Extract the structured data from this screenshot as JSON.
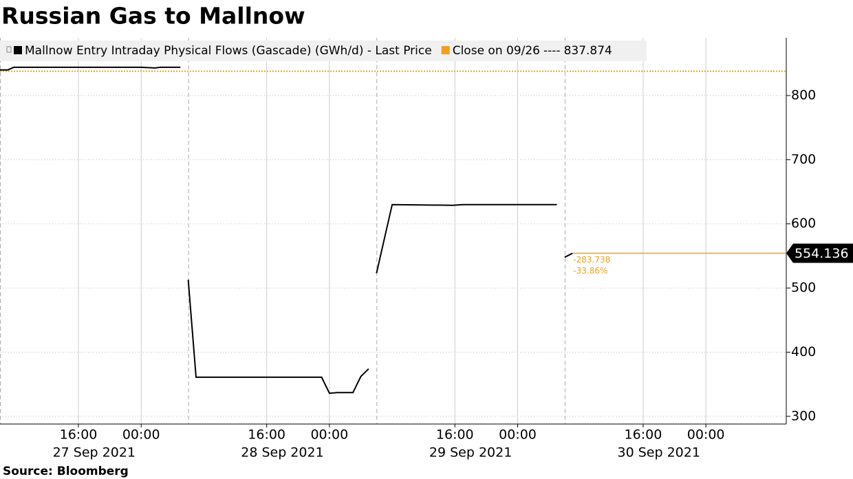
{
  "chart_data": {
    "type": "line",
    "title": "Russian Gas to Mallnow",
    "source": "Source: Bloomberg",
    "x": [
      "2021-09-27T06:00",
      "2021-09-27T07:00",
      "2021-09-27T07:45",
      "2021-09-27T16:00",
      "2021-09-28T00:00",
      "2021-09-28T01:45",
      "2021-09-28T02:30",
      "2021-09-28T05:00",
      "2021-09-28T05:30",
      "2021-09-28T06:00",
      "2021-09-28T07:00",
      "2021-09-28T23:00",
      "2021-09-29T00:00",
      "2021-09-29T01:00",
      "2021-09-29T03:00",
      "2021-09-29T04:00",
      "2021-09-29T05:00",
      "2021-09-29T05:30",
      "2021-09-29T06:00",
      "2021-09-29T08:00",
      "2021-09-29T15:45",
      "2021-09-29T17:00",
      "2021-09-30T05:00",
      "2021-09-30T05:30",
      "2021-09-30T06:00",
      "2021-09-30T07:00"
    ],
    "series": [
      {
        "name": "Mallnow Entry Intraday Physical Flows (Gascade) (GWh/d) - Last Price",
        "color": "#000000",
        "values": [
          840,
          840,
          844,
          844,
          844,
          843,
          844,
          844,
          null,
          513,
          361,
          361,
          336,
          337,
          337,
          362,
          374,
          null,
          523,
          630,
          629,
          630,
          630,
          null,
          548,
          554.136
        ]
      }
    ],
    "reference_line": {
      "name": "Close on 09/26",
      "dash_text": "----",
      "value": 837.874,
      "color": "#f0a01e"
    },
    "change": {
      "value": -283.738
    },
    "change_pct": {
      "value": -33.86,
      "label": "-33.86%"
    },
    "xlim": [
      "2021-09-27T06:00",
      "2021-10-01T10:15"
    ],
    "xticks": [
      {
        "value": "2021-09-27T16:00",
        "label": "16:00"
      },
      {
        "value": "2021-09-28T00:00",
        "label": "00:00"
      },
      {
        "value": "2021-09-28T16:00",
        "label": "16:00"
      },
      {
        "value": "2021-09-29T00:00",
        "label": "00:00"
      },
      {
        "value": "2021-09-29T16:00",
        "label": "16:00"
      },
      {
        "value": "2021-09-30T00:00",
        "label": "00:00"
      },
      {
        "value": "2021-09-30T16:00",
        "label": "16:00"
      },
      {
        "value": "2021-10-01T00:00",
        "label": "00:00"
      }
    ],
    "day_labels": [
      {
        "value": "2021-09-27T18:00",
        "label": "27 Sep 2021"
      },
      {
        "value": "2021-09-28T18:00",
        "label": "28 Sep 2021"
      },
      {
        "value": "2021-09-29T18:00",
        "label": "29 Sep 2021"
      },
      {
        "value": "2021-09-30T18:00",
        "label": "30 Sep 2021"
      }
    ],
    "session_starts": [
      "2021-09-27T06:00",
      "2021-09-28T06:00",
      "2021-09-29T06:00",
      "2021-09-30T06:00"
    ],
    "ylim": [
      288,
      890
    ],
    "yticks": [
      300,
      400,
      500,
      600,
      700,
      800
    ],
    "y_axis_side": "right",
    "grid": true
  }
}
